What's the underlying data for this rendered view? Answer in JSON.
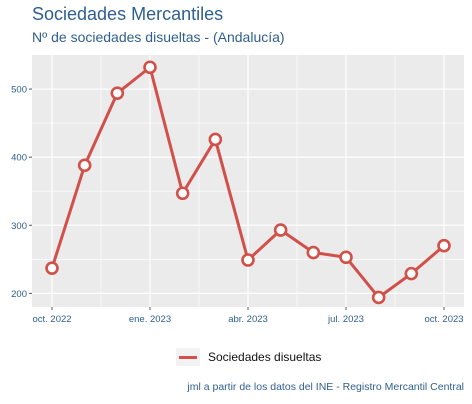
{
  "header": {
    "title": "Sociedades Mercantiles",
    "subtitle": "Nº de sociedades disueltas - (Andalucía)"
  },
  "caption": "jml a partir de los datos del INE - Registro Mercantil Central",
  "colors": {
    "series": "#d2504a",
    "panel": "#ebebeb",
    "grid": "#ffffff",
    "text": "#2f5f8f"
  },
  "chart_data": {
    "type": "line",
    "x": [
      "2022-10",
      "2022-11",
      "2022-12",
      "2023-01",
      "2023-02",
      "2023-03",
      "2023-04",
      "2023-05",
      "2023-06",
      "2023-07",
      "2023-08",
      "2023-09",
      "2023-10"
    ],
    "series": [
      {
        "name": "Sociedades disueltas",
        "values": [
          237,
          388,
          494,
          532,
          347,
          426,
          249,
          293,
          260,
          253,
          194,
          229,
          270
        ]
      }
    ],
    "xticks": [
      {
        "at": "2022-10",
        "label": "oct. 2022"
      },
      {
        "at": "2023-01",
        "label": "ene. 2023"
      },
      {
        "at": "2023-04",
        "label": "abr. 2023"
      },
      {
        "at": "2023-07",
        "label": "jul. 2023"
      },
      {
        "at": "2023-10",
        "label": "oct. 2023"
      }
    ],
    "yticks": [
      200,
      300,
      400,
      500
    ],
    "ylim": [
      180,
      550
    ],
    "grid": true,
    "legend": "bottom"
  }
}
